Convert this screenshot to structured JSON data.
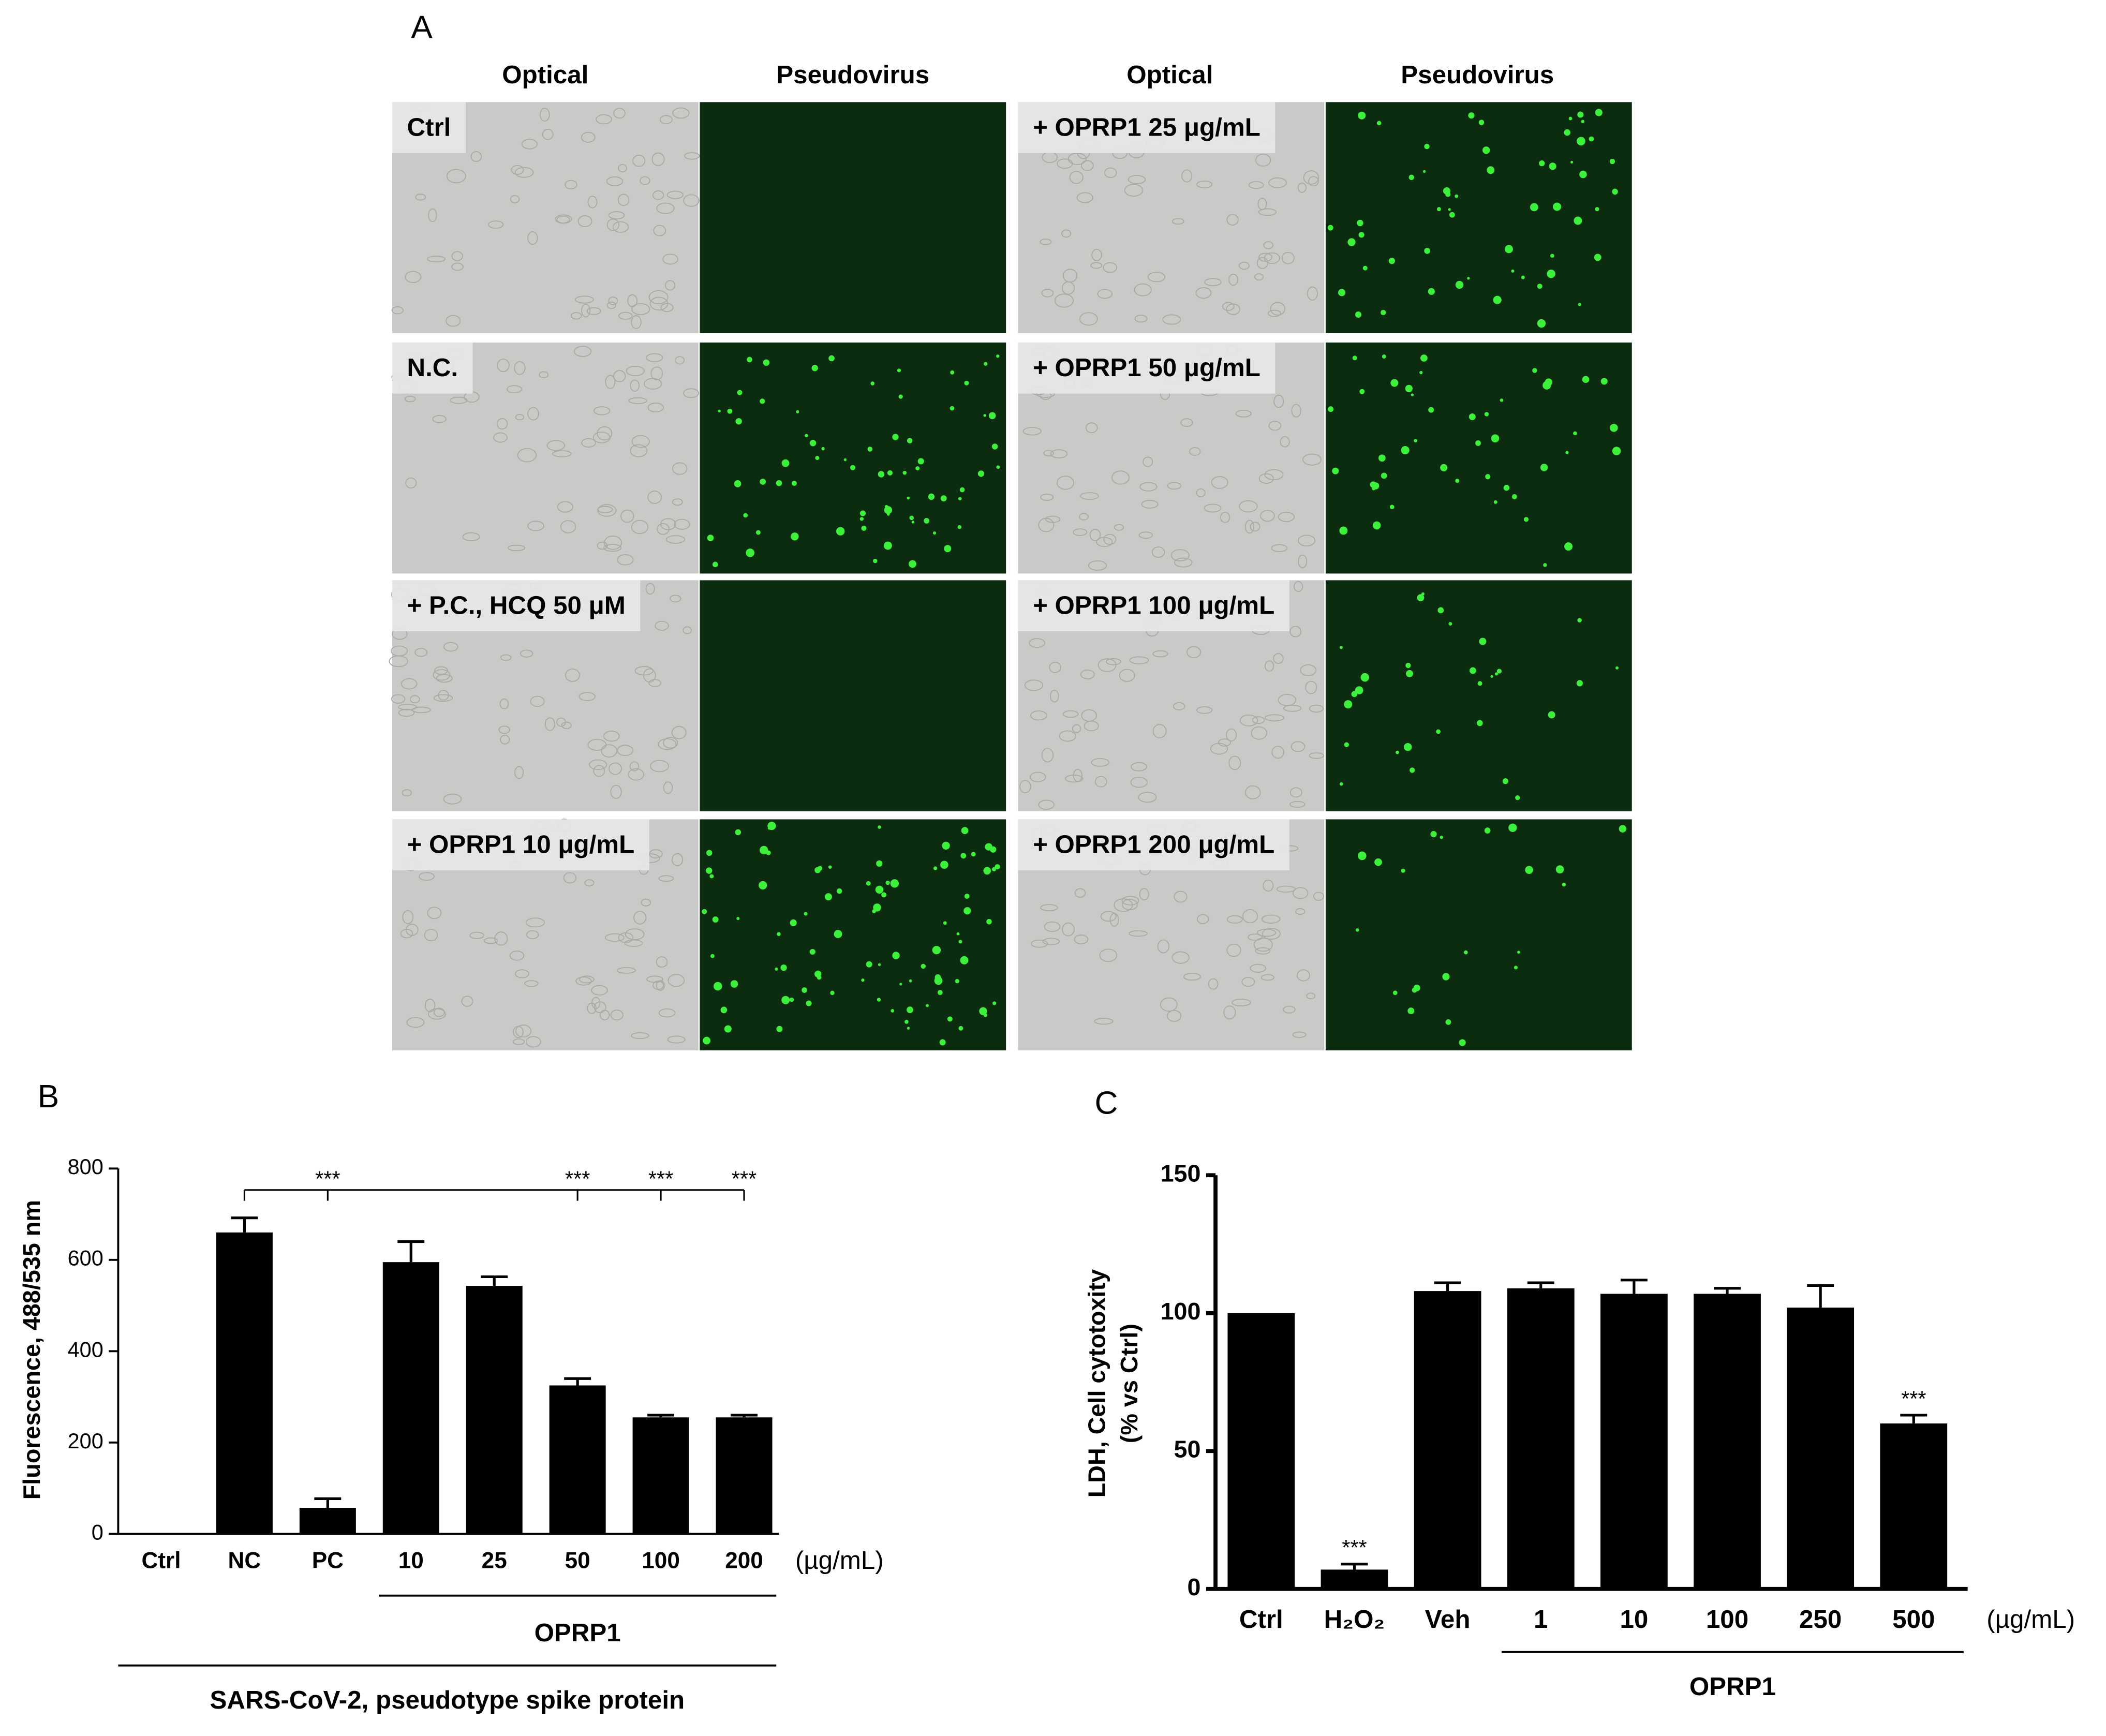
{
  "panel_a": {
    "label": "A",
    "column_headers": [
      "Optical",
      "Pseudovirus",
      "Optical",
      "Pseudovirus"
    ],
    "images": [
      "Ctrl",
      "N.C.",
      "+ P.C., HCQ 50 μM",
      "+ OPRP1 10 μg/mL",
      "+ OPRP1 25 μg/mL",
      "+ OPRP1 50 μg/mL",
      "+ OPRP1 100 μg/mL",
      "+ OPRP1 200 μg/mL"
    ]
  },
  "chart_data": [
    {
      "type": "bar",
      "panel_label": "B",
      "color": "#000000",
      "categories": [
        "Ctrl",
        "NC",
        "PC",
        "10",
        "25",
        "50",
        "100",
        "200"
      ],
      "values": [
        0,
        660,
        57,
        595,
        543,
        325,
        255,
        255
      ],
      "errors": [
        0,
        32,
        20,
        45,
        20,
        15,
        5,
        5
      ],
      "significance": [
        null,
        null,
        "***",
        null,
        null,
        "***",
        "***",
        "***"
      ],
      "ylim": [
        0,
        800
      ],
      "yticks": [
        0,
        200,
        400,
        600,
        800
      ],
      "y_label": [
        "Fluorescence, 488/535 nm"
      ],
      "unit_label": "(µg/mL)",
      "group_labels": [
        "OPRP1",
        "SARS-CoV-2, pseudotype spike protein"
      ]
    },
    {
      "type": "bar",
      "panel_label": "C",
      "color": "#000000",
      "categories": [
        "Ctrl",
        "H₂O₂",
        "Veh",
        "1",
        "10",
        "100",
        "250",
        "500"
      ],
      "values": [
        100,
        7,
        108,
        109,
        107,
        107,
        102,
        60
      ],
      "errors": [
        0,
        2,
        3,
        2,
        5,
        2,
        8,
        3
      ],
      "significance": [
        null,
        "***",
        null,
        null,
        null,
        null,
        null,
        "***"
      ],
      "ylim": [
        0,
        150
      ],
      "yticks": [
        0,
        50,
        100,
        150
      ],
      "y_label": [
        "LDH, Cell cytotoxity",
        "(% vs Ctrl)"
      ],
      "unit_label": "(µg/mL)",
      "group_labels": [
        "OPRP1"
      ]
    }
  ]
}
